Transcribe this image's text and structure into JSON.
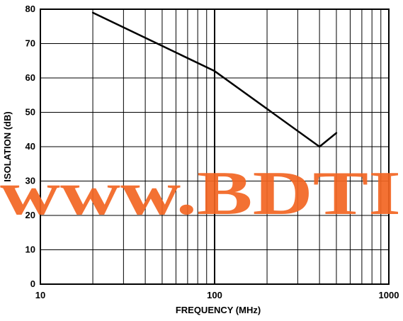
{
  "chart_data": {
    "type": "line",
    "xscale": "log",
    "xlim": [
      10,
      1000
    ],
    "ylim": [
      0,
      80
    ],
    "xticks": [
      {
        "value": 10,
        "label": "10"
      },
      {
        "value": 100,
        "label": "100"
      },
      {
        "value": 1000,
        "label": "1000"
      }
    ],
    "yticks": [
      {
        "value": 0,
        "label": "0"
      },
      {
        "value": 10,
        "label": "10"
      },
      {
        "value": 20,
        "label": "20"
      },
      {
        "value": 30,
        "label": "30"
      },
      {
        "value": 40,
        "label": "40"
      },
      {
        "value": 50,
        "label": "50"
      },
      {
        "value": 60,
        "label": "60"
      },
      {
        "value": 70,
        "label": "70"
      },
      {
        "value": 80,
        "label": "80"
      }
    ],
    "xgrid_minor": [
      20,
      30,
      40,
      50,
      60,
      70,
      80,
      90,
      200,
      300,
      400,
      500,
      600,
      700,
      800,
      900
    ],
    "grid": true,
    "xlabel": "FREQUENCY (MHz)",
    "ylabel": "ISOLATION (dB)",
    "series": [
      {
        "x": [
          20,
          100,
          400,
          500
        ],
        "y": [
          79,
          62,
          40,
          44
        ]
      }
    ],
    "colors": {
      "line": "#000000",
      "grid": "#000000",
      "watermark": "#f26522"
    }
  },
  "watermark": {
    "text": "www.BDTI"
  }
}
